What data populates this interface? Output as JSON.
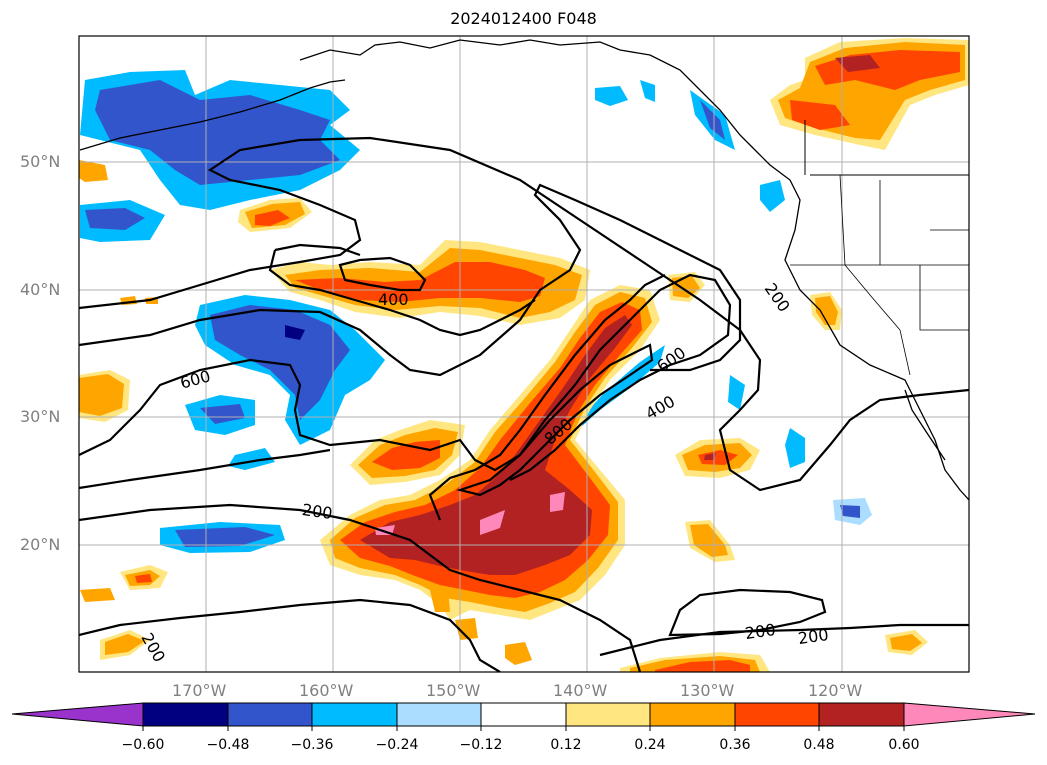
{
  "title": "2024012400 F048",
  "latitudes": [
    "50°N",
    "40°N",
    "30°N",
    "20°N"
  ],
  "longitudes": [
    "170°W",
    "160°W",
    "150°W",
    "140°W",
    "130°W",
    "120°W"
  ],
  "contour_labels": [
    "400",
    "600",
    "800",
    "600",
    "400",
    "200",
    "200",
    "200",
    "200",
    "200"
  ],
  "colorbar": {
    "ticks": [
      "−0.60",
      "−0.48",
      "−0.36",
      "−0.24",
      "−0.12",
      "0.12",
      "0.24",
      "0.36",
      "0.48",
      "0.60"
    ],
    "colors": [
      "#9933cc",
      "#000080",
      "#3355cc",
      "#00bbff",
      "#aaddff",
      "#ffffff",
      "#ffe680",
      "#ffa500",
      "#ff4500",
      "#b22222",
      "#ff88bb"
    ]
  }
}
